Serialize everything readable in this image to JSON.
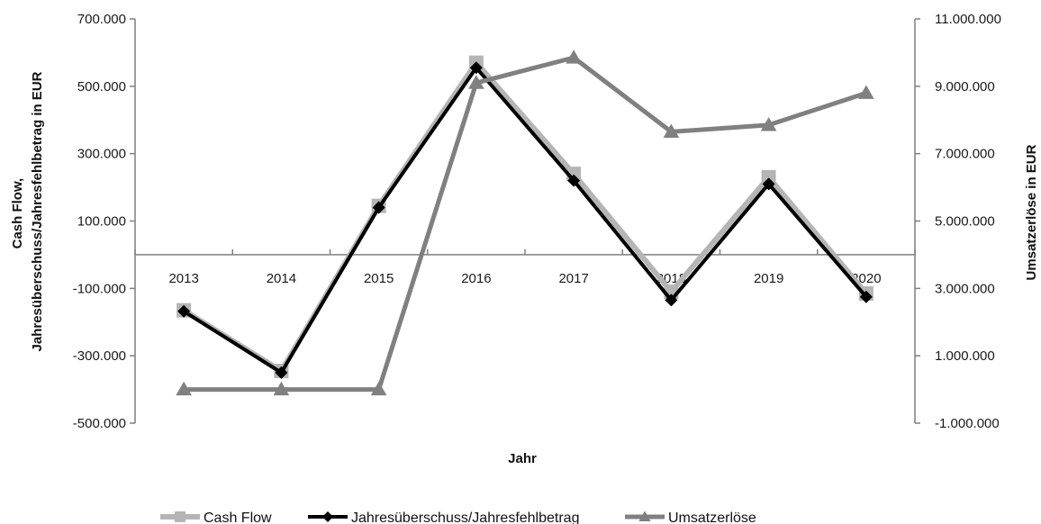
{
  "chart_data": {
    "type": "line",
    "x": [
      "2013",
      "2014",
      "2015",
      "2016",
      "2017",
      "2018",
      "2019",
      "2020"
    ],
    "xlabel": "Jahr",
    "ylabel_left": [
      "Cash Flow,",
      "Jahresüberschuss/Jahresfehlbetrag  in EUR"
    ],
    "ylabel_right": "Umsatzerlöse in EUR",
    "ylim_left": [
      -500000,
      700000
    ],
    "ylim_right": [
      -1000000,
      11000000
    ],
    "yticks_left": [
      "700.000",
      "500.000",
      "300.000",
      "100.000",
      "-100.000",
      "-300.000",
      "-500.000"
    ],
    "yticks_right": [
      "11.000.000",
      "9.000.000",
      "7.000.000",
      "5.000.000",
      "3.000.000",
      "1.000.000",
      "-1.000.000"
    ],
    "legend_position": "bottom",
    "grid": false,
    "series": [
      {
        "name": "Cash Flow",
        "axis": "left",
        "marker": "square",
        "color": "#b5b5b5",
        "values": [
          -165000,
          -345000,
          145000,
          570000,
          240000,
          -110000,
          230000,
          -115000
        ]
      },
      {
        "name": "Jahresüberschuss/Jahresfehlbetrag",
        "axis": "left",
        "marker": "diamond",
        "color": "#000000",
        "values": [
          -168000,
          -350000,
          140000,
          555000,
          220000,
          -135000,
          210000,
          -125000
        ]
      },
      {
        "name": "Umsatzerlöse",
        "axis": "right",
        "marker": "triangle",
        "color": "#808080",
        "values": [
          0,
          0,
          0,
          9100000,
          9850000,
          7650000,
          7850000,
          8800000
        ]
      }
    ]
  }
}
